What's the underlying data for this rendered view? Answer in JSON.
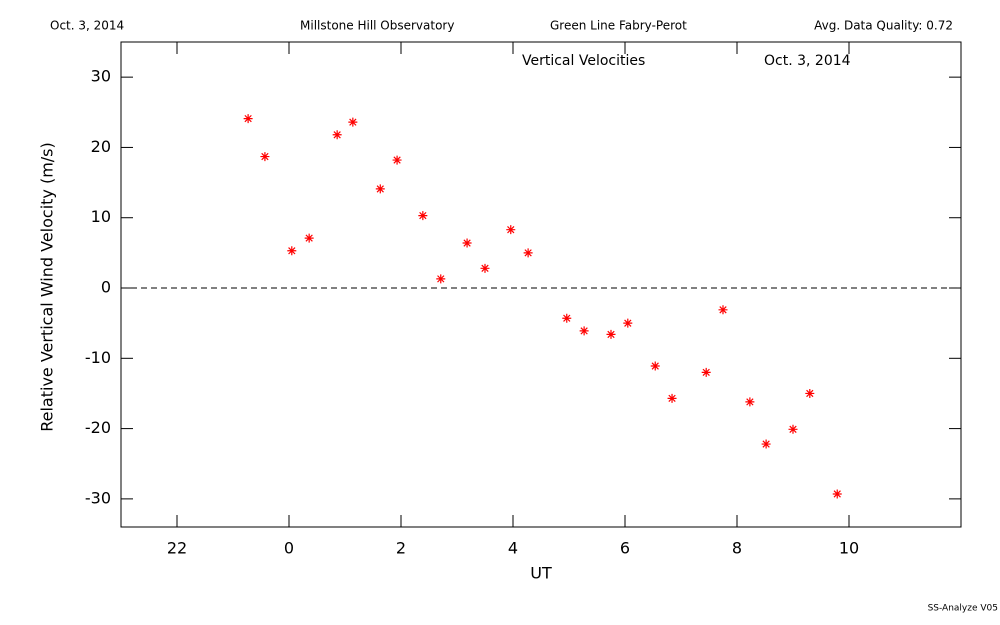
{
  "chart_data": {
    "type": "scatter",
    "header": [
      "Oct. 3, 2014",
      "Millstone Hill Observatory",
      "Green Line Fabry-Perot",
      "Avg. Data Quality: 0.72"
    ],
    "title": "Vertical Velocities",
    "subtitle": "Oct. 3, 2014",
    "footer": "SS-Analyze V05",
    "xlabel": "UT",
    "ylabel": "Relative Vertical Wind Velocity (m/s)",
    "xlim": [
      -3,
      12
    ],
    "xticks": [
      {
        "value": -2,
        "label": "22"
      },
      0,
      2,
      4,
      6,
      8,
      10
    ],
    "ylim": [
      -34,
      35
    ],
    "yticks": [
      -30,
      -20,
      -10,
      0,
      10,
      20,
      30
    ],
    "reference_line": 0,
    "color": "#ff0000",
    "x": [
      -0.73,
      -0.43,
      0.05,
      0.36,
      0.86,
      1.14,
      1.63,
      1.93,
      2.39,
      2.71,
      3.18,
      3.5,
      3.96,
      4.27,
      4.96,
      5.27,
      5.75,
      6.05,
      6.54,
      6.84,
      7.45,
      7.75,
      8.23,
      8.52,
      9.0,
      9.3,
      9.79
    ],
    "values": [
      24.1,
      18.7,
      5.3,
      7.1,
      21.8,
      23.6,
      14.1,
      18.2,
      10.3,
      1.3,
      6.4,
      2.8,
      8.3,
      5.0,
      -4.3,
      -6.1,
      -6.6,
      -5.0,
      -11.1,
      -15.7,
      -12.0,
      -3.1,
      -16.2,
      -22.2,
      -20.1,
      -15.0,
      -29.3
    ]
  }
}
